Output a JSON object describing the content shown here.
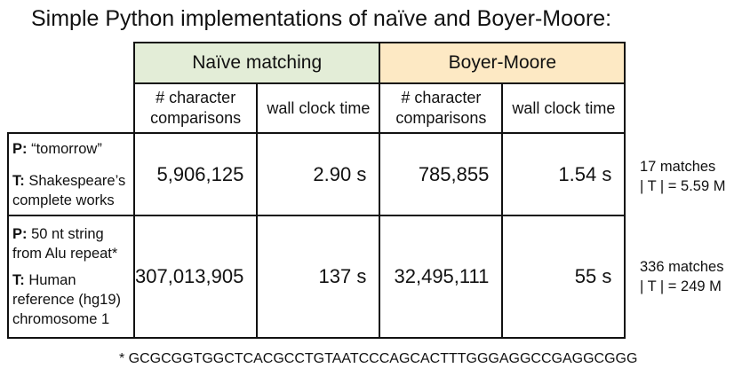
{
  "title": "Simple Python implementations of naïve and Boyer-Moore:",
  "groups": {
    "naive": "Naïve matching",
    "boyer_moore": "Boyer-Moore"
  },
  "subheaders": {
    "comparisons_line1": "# character",
    "comparisons_line2": "comparisons",
    "wall_clock": "wall clock time"
  },
  "rows": [
    {
      "p_label": "P:",
      "p_text": " “tomorrow”",
      "t_label": "T:",
      "t_text": " Shakespeare’s complete works",
      "naive_comparisons": "5,906,125",
      "naive_time": "2.90 s",
      "bm_comparisons": "785,855",
      "bm_time": "1.54 s",
      "matches": "17 matches",
      "text_length": "| T | = 5.59 M"
    },
    {
      "p_label": "P:",
      "p_text": " 50 nt string from Alu repeat*",
      "t_label": "T:",
      "t_text": " Human reference (hg19) chromosome 1",
      "naive_comparisons": "307,013,905",
      "naive_time": "137 s",
      "bm_comparisons": "32,495,111",
      "bm_time": "55 s",
      "matches": "336 matches",
      "text_length": "| T | = 249 M"
    }
  ],
  "footnote": "* GCGCGGTGGCTCACGCCTGTAATCCCAGCACTTTGGGAGGCCGAGGCGGG",
  "colors": {
    "naive_header_bg": "#e3edd7",
    "bm_header_bg": "#fde9c4",
    "border": "#111111"
  }
}
